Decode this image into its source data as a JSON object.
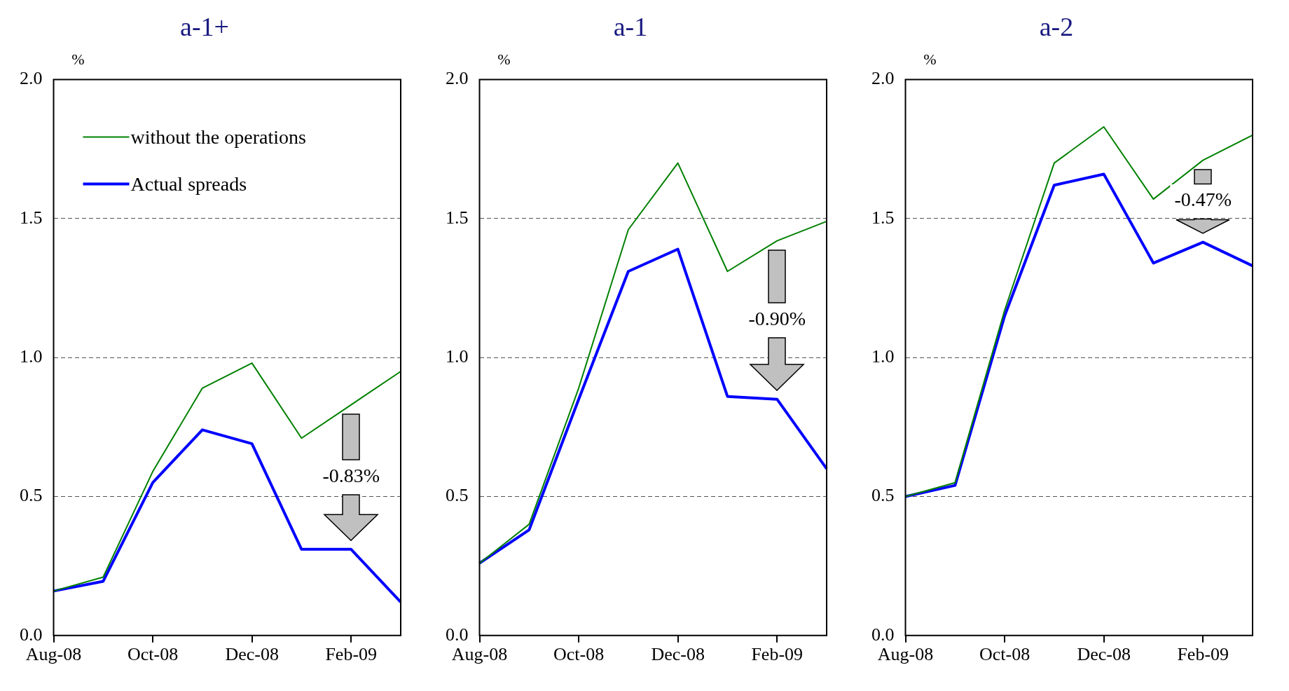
{
  "chart_data": [
    {
      "type": "line",
      "title": "a-1+",
      "ylabel": "%",
      "categories": [
        "Aug-08",
        null,
        "Oct-08",
        null,
        "Dec-08",
        null,
        "Feb-09",
        null
      ],
      "ylim": [
        0,
        2
      ],
      "yticks": [
        {
          "value": 0,
          "label": "0.0"
        },
        {
          "value": 0.5,
          "label": "0.5"
        },
        {
          "value": 1,
          "label": "1.0"
        },
        {
          "value": 1.5,
          "label": "1.5"
        },
        {
          "value": 2,
          "label": "2.0"
        }
      ],
      "grid": "y",
      "legend": "top left",
      "marker": "none",
      "series": [
        {
          "name": "without the operations",
          "color": "#008000",
          "values": [
            0.16,
            0.21,
            0.59,
            0.89,
            0.98,
            0.71,
            0.83,
            0.95
          ]
        },
        {
          "name": "Actual spreads",
          "color": "#0000ff",
          "values": [
            0.16,
            0.195,
            0.55,
            0.74,
            0.69,
            0.31,
            0.31,
            0.12
          ]
        }
      ],
      "annotations": [
        "-0.83%"
      ]
    },
    {
      "type": "line",
      "title": "a-1",
      "ylabel": "%",
      "categories": [
        "Aug-08",
        null,
        "Oct-08",
        null,
        "Dec-08",
        null,
        "Feb-09",
        null
      ],
      "ylim": [
        0,
        2
      ],
      "yticks": [
        {
          "value": 0,
          "label": "0.0"
        },
        {
          "value": 0.5,
          "label": "0.5"
        },
        {
          "value": 1,
          "label": "1.0"
        },
        {
          "value": 1.5,
          "label": "1.5"
        },
        {
          "value": 2,
          "label": "2.0"
        }
      ],
      "grid": "y",
      "marker": "none",
      "series": [
        {
          "color": "#008000",
          "values": [
            0.26,
            0.4,
            0.89,
            1.46,
            1.7,
            1.31,
            1.42,
            1.49
          ]
        },
        {
          "color": "#0000ff",
          "values": [
            0.26,
            0.38,
            0.85,
            1.31,
            1.39,
            0.86,
            0.85,
            0.6
          ]
        }
      ],
      "annotations": [
        "-0.90%"
      ]
    },
    {
      "type": "line",
      "title": "a-2",
      "ylabel": "%",
      "categories": [
        "Aug-08",
        null,
        "Oct-08",
        null,
        "Dec-08",
        null,
        "Feb-09",
        null
      ],
      "ylim": [
        0,
        2
      ],
      "yticks": [
        {
          "value": 0,
          "label": "0.0"
        },
        {
          "value": 0.5,
          "label": "0.5"
        },
        {
          "value": 1,
          "label": "1.0"
        },
        {
          "value": 1.5,
          "label": "1.5"
        },
        {
          "value": 2,
          "label": "2.0"
        }
      ],
      "grid": "y",
      "marker": "none",
      "series": [
        {
          "color": "#008000",
          "values": [
            0.5,
            0.55,
            1.17,
            1.7,
            1.83,
            1.57,
            1.71,
            1.8
          ]
        },
        {
          "color": "#0000ff",
          "values": [
            0.5,
            0.54,
            1.15,
            1.62,
            1.66,
            1.34,
            1.415,
            1.33
          ]
        }
      ],
      "annotations": [
        "-0.47%"
      ]
    }
  ]
}
